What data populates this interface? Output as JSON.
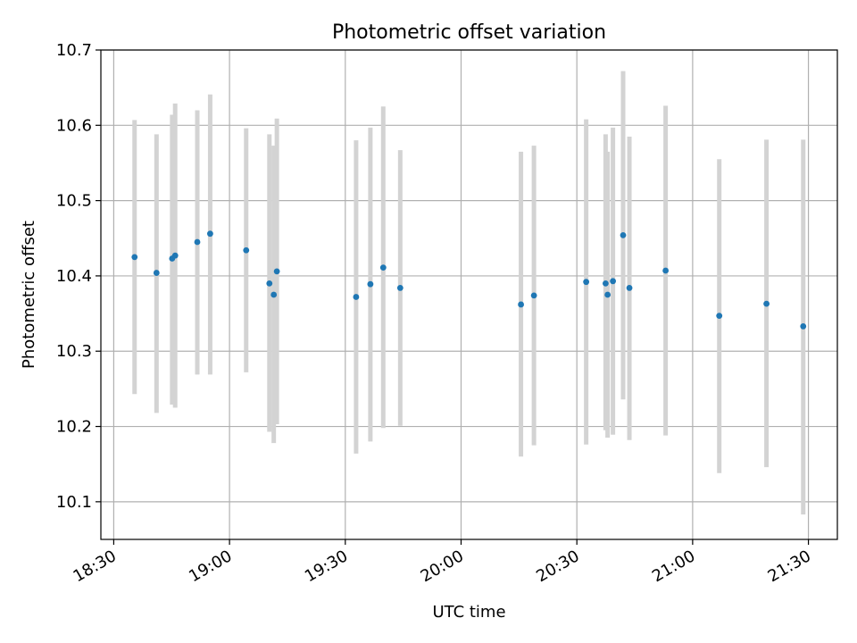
{
  "chart_data": {
    "type": "scatter",
    "title": "Photometric offset variation",
    "xlabel": "UTC time",
    "ylabel": "Photometric offset",
    "grid": true,
    "x_ticks": [
      "18:30",
      "19:00",
      "19:30",
      "20:00",
      "20:30",
      "21:00",
      "21:30"
    ],
    "y_ticks": [
      "10.1",
      "10.2",
      "10.3",
      "10.4",
      "10.5",
      "10.6",
      "10.7"
    ],
    "xlim": [
      "18:26:40",
      "21:37:30"
    ],
    "ylim": [
      10.05,
      10.7
    ],
    "colors": {
      "points": "#1f77b4",
      "error_bars": "#d3d3d3",
      "grid": "#b0b0b0"
    },
    "points": [
      {
        "x": "18:35:24",
        "y": 10.425,
        "err_low": 10.243,
        "err_high": 10.607
      },
      {
        "x": "18:41:05",
        "y": 10.404,
        "err_low": 10.218,
        "err_high": 10.588
      },
      {
        "x": "18:45:08",
        "y": 10.423,
        "err_low": 10.229,
        "err_high": 10.614
      },
      {
        "x": "18:45:55",
        "y": 10.427,
        "err_low": 10.225,
        "err_high": 10.629
      },
      {
        "x": "18:51:39",
        "y": 10.445,
        "err_low": 10.269,
        "err_high": 10.62
      },
      {
        "x": "18:54:59",
        "y": 10.456,
        "err_low": 10.269,
        "err_high": 10.641
      },
      {
        "x": "19:04:19",
        "y": 10.434,
        "err_low": 10.272,
        "err_high": 10.596
      },
      {
        "x": "19:10:20",
        "y": 10.39,
        "err_low": 10.193,
        "err_high": 10.588
      },
      {
        "x": "19:11:28",
        "y": 10.375,
        "err_low": 10.178,
        "err_high": 10.573
      },
      {
        "x": "19:12:16",
        "y": 10.406,
        "err_low": 10.203,
        "err_high": 10.609
      },
      {
        "x": "19:32:48",
        "y": 10.372,
        "err_low": 10.164,
        "err_high": 10.58
      },
      {
        "x": "19:36:30",
        "y": 10.389,
        "err_low": 10.18,
        "err_high": 10.597
      },
      {
        "x": "19:39:50",
        "y": 10.411,
        "err_low": 10.198,
        "err_high": 10.625
      },
      {
        "x": "19:44:14",
        "y": 10.384,
        "err_low": 10.201,
        "err_high": 10.567
      },
      {
        "x": "20:15:31",
        "y": 10.362,
        "err_low": 10.16,
        "err_high": 10.565
      },
      {
        "x": "20:18:53",
        "y": 10.374,
        "err_low": 10.175,
        "err_high": 10.573
      },
      {
        "x": "20:32:25",
        "y": 10.392,
        "err_low": 10.176,
        "err_high": 10.608
      },
      {
        "x": "20:37:27",
        "y": 10.39,
        "err_low": 10.195,
        "err_high": 10.588
      },
      {
        "x": "20:37:58",
        "y": 10.375,
        "err_low": 10.185,
        "err_high": 10.565
      },
      {
        "x": "20:39:21",
        "y": 10.393,
        "err_low": 10.189,
        "err_high": 10.597
      },
      {
        "x": "20:41:59",
        "y": 10.454,
        "err_low": 10.236,
        "err_high": 10.672
      },
      {
        "x": "20:43:37",
        "y": 10.384,
        "err_low": 10.182,
        "err_high": 10.585
      },
      {
        "x": "20:53:00",
        "y": 10.407,
        "err_low": 10.188,
        "err_high": 10.626
      },
      {
        "x": "21:06:54",
        "y": 10.347,
        "err_low": 10.138,
        "err_high": 10.555
      },
      {
        "x": "21:19:08",
        "y": 10.363,
        "err_low": 10.146,
        "err_high": 10.581
      },
      {
        "x": "21:28:39",
        "y": 10.333,
        "err_low": 10.083,
        "err_high": 10.581
      }
    ]
  }
}
